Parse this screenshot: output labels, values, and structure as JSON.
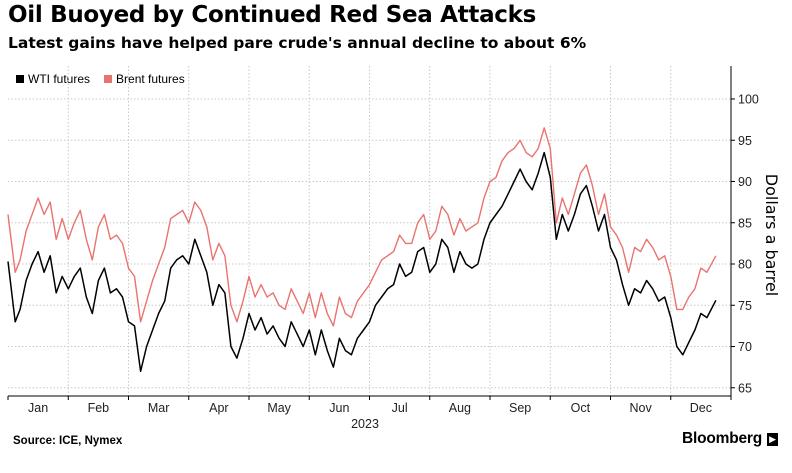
{
  "chart_data": {
    "type": "line",
    "title": "Oil Buoyed by Continued Red Sea Attacks",
    "subtitle": "Latest gains have helped pare crude's annual decline to about 6%",
    "ylabel": "Dollars a barrel",
    "xlabel": "2023",
    "ylim": [
      64,
      104
    ],
    "yticks": [
      65,
      70,
      75,
      80,
      85,
      90,
      95,
      100
    ],
    "xticks": [
      "Jan",
      "Feb",
      "Mar",
      "Apr",
      "May",
      "Jun",
      "Jul",
      "Aug",
      "Sep",
      "Oct",
      "Nov",
      "Dec"
    ],
    "x_range": [
      0,
      12
    ],
    "grid": true,
    "legend_position": "top-left",
    "series": [
      {
        "name": "WTI futures",
        "color": "#000000",
        "x": [
          0.0,
          0.12,
          0.2,
          0.3,
          0.4,
          0.5,
          0.6,
          0.7,
          0.8,
          0.9,
          1.0,
          1.1,
          1.2,
          1.3,
          1.4,
          1.5,
          1.6,
          1.7,
          1.8,
          1.9,
          2.0,
          2.1,
          2.2,
          2.3,
          2.4,
          2.5,
          2.6,
          2.7,
          2.8,
          2.9,
          3.0,
          3.1,
          3.2,
          3.3,
          3.4,
          3.5,
          3.6,
          3.7,
          3.8,
          3.9,
          4.0,
          4.1,
          4.2,
          4.3,
          4.4,
          4.5,
          4.6,
          4.7,
          4.8,
          4.9,
          5.0,
          5.1,
          5.2,
          5.3,
          5.4,
          5.5,
          5.6,
          5.7,
          5.8,
          5.9,
          6.0,
          6.1,
          6.2,
          6.3,
          6.4,
          6.5,
          6.6,
          6.7,
          6.8,
          6.9,
          7.0,
          7.1,
          7.2,
          7.3,
          7.4,
          7.5,
          7.6,
          7.7,
          7.8,
          7.9,
          8.0,
          8.1,
          8.2,
          8.3,
          8.4,
          8.5,
          8.6,
          8.7,
          8.8,
          8.9,
          9.0,
          9.1,
          9.2,
          9.3,
          9.4,
          9.5,
          9.6,
          9.7,
          9.8,
          9.9,
          10.0,
          10.1,
          10.2,
          10.3,
          10.4,
          10.5,
          10.6,
          10.7,
          10.8,
          10.9,
          11.0,
          11.1,
          11.2,
          11.3,
          11.4,
          11.5,
          11.6,
          11.75
        ],
        "values": [
          80.3,
          73.0,
          74.5,
          78.0,
          80.0,
          81.5,
          79.0,
          81.0,
          76.5,
          78.5,
          77.0,
          78.5,
          79.5,
          76.0,
          74.0,
          78.0,
          79.5,
          76.5,
          77.0,
          76.0,
          73.0,
          72.5,
          67.0,
          70.0,
          72.0,
          74.0,
          75.5,
          79.5,
          80.5,
          81.0,
          80.0,
          83.0,
          81.0,
          79.0,
          75.0,
          77.5,
          76.5,
          70.0,
          68.6,
          71.0,
          74.0,
          72.0,
          73.5,
          71.5,
          72.5,
          71.0,
          70.0,
          73.0,
          71.5,
          70.0,
          72.0,
          69.0,
          72.0,
          69.5,
          67.5,
          71.0,
          69.5,
          69.0,
          71.0,
          72.0,
          73.0,
          75.0,
          76.0,
          77.0,
          77.5,
          80.0,
          78.5,
          79.0,
          81.5,
          82.0,
          79.0,
          80.0,
          83.0,
          82.0,
          79.0,
          81.5,
          80.0,
          79.5,
          80.0,
          83.0,
          85.0,
          86.0,
          87.0,
          88.5,
          90.0,
          91.5,
          90.0,
          89.0,
          91.0,
          93.5,
          90.5,
          83.0,
          86.0,
          84.0,
          86.0,
          88.5,
          89.5,
          87.0,
          84.0,
          86.0,
          82.0,
          80.5,
          77.5,
          75.0,
          77.0,
          76.5,
          78.0,
          77.0,
          75.5,
          76.0,
          73.5,
          70.0,
          69.0,
          70.5,
          72.0,
          74.0,
          73.5,
          75.6
        ]
      },
      {
        "name": "Brent futures",
        "color": "#e8736f",
        "x": [
          0.0,
          0.12,
          0.2,
          0.3,
          0.4,
          0.5,
          0.6,
          0.7,
          0.8,
          0.9,
          1.0,
          1.1,
          1.2,
          1.3,
          1.4,
          1.5,
          1.6,
          1.7,
          1.8,
          1.9,
          2.0,
          2.1,
          2.2,
          2.3,
          2.4,
          2.5,
          2.6,
          2.7,
          2.8,
          2.9,
          3.0,
          3.1,
          3.2,
          3.3,
          3.4,
          3.5,
          3.6,
          3.7,
          3.8,
          3.9,
          4.0,
          4.1,
          4.2,
          4.3,
          4.4,
          4.5,
          4.6,
          4.7,
          4.8,
          4.9,
          5.0,
          5.1,
          5.2,
          5.3,
          5.4,
          5.5,
          5.6,
          5.7,
          5.8,
          5.9,
          6.0,
          6.1,
          6.2,
          6.3,
          6.4,
          6.5,
          6.6,
          6.7,
          6.8,
          6.9,
          7.0,
          7.1,
          7.2,
          7.3,
          7.4,
          7.5,
          7.6,
          7.7,
          7.8,
          7.9,
          8.0,
          8.1,
          8.2,
          8.3,
          8.4,
          8.5,
          8.6,
          8.7,
          8.8,
          8.9,
          9.0,
          9.1,
          9.2,
          9.3,
          9.4,
          9.5,
          9.6,
          9.7,
          9.8,
          9.9,
          10.0,
          10.1,
          10.2,
          10.3,
          10.4,
          10.5,
          10.6,
          10.7,
          10.8,
          10.9,
          11.0,
          11.1,
          11.2,
          11.3,
          11.4,
          11.5,
          11.6,
          11.75
        ],
        "values": [
          86.0,
          79.0,
          80.5,
          84.0,
          86.0,
          88.0,
          86.0,
          87.5,
          83.0,
          85.5,
          83.0,
          85.0,
          86.5,
          83.0,
          80.5,
          84.5,
          86.0,
          83.0,
          83.5,
          82.5,
          79.5,
          78.5,
          73.0,
          75.5,
          78.0,
          80.0,
          82.0,
          85.5,
          86.0,
          86.5,
          85.0,
          87.5,
          86.5,
          84.5,
          80.5,
          82.5,
          81.0,
          75.0,
          73.0,
          75.5,
          78.5,
          76.0,
          77.5,
          76.0,
          76.5,
          75.0,
          74.5,
          77.0,
          75.5,
          74.0,
          76.5,
          73.5,
          76.5,
          74.0,
          72.5,
          76.0,
          74.0,
          73.5,
          75.5,
          76.5,
          77.5,
          79.0,
          80.5,
          81.0,
          81.5,
          83.5,
          82.5,
          82.5,
          85.0,
          86.0,
          83.0,
          84.0,
          87.0,
          86.0,
          83.5,
          85.5,
          84.0,
          84.5,
          85.0,
          88.0,
          90.0,
          90.5,
          92.5,
          93.5,
          94.0,
          95.0,
          93.5,
          93.0,
          94.0,
          96.5,
          94.0,
          85.0,
          88.0,
          86.0,
          88.5,
          91.0,
          92.0,
          89.5,
          86.0,
          88.5,
          84.5,
          83.5,
          82.0,
          79.0,
          82.0,
          81.5,
          83.0,
          82.0,
          80.5,
          81.0,
          78.5,
          74.5,
          74.5,
          76.0,
          77.0,
          79.5,
          79.0,
          81.0
        ]
      }
    ]
  },
  "footer": {
    "source": "Source: ICE, Nymex",
    "brand": "Bloomberg",
    "brand_icon": "bloomberg-logo-icon"
  }
}
